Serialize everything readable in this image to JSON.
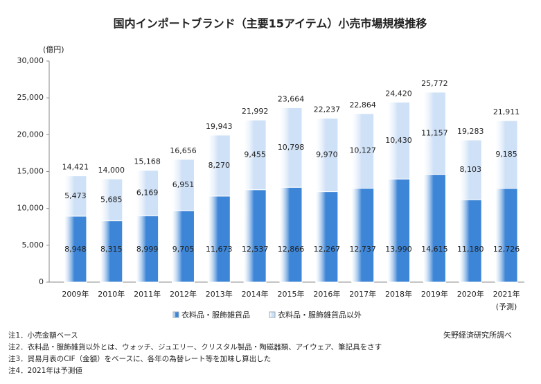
{
  "chart_data": {
    "type": "stacked_bar",
    "title": "国内インポートブランド（主要15アイテム）小売市場規模推移",
    "y_axis_label": "(億円)",
    "categories": [
      "2009年",
      "2010年",
      "2011年",
      "2012年",
      "2013年",
      "2014年",
      "2015年",
      "2016年",
      "2017年",
      "2018年",
      "2019年",
      "2020年",
      "2021年"
    ],
    "forecast_note": "(予測)",
    "series": [
      {
        "name": "衣料品・服飾雑貨品",
        "color": "#3d85d6",
        "values": [
          8948,
          8315,
          8999,
          9705,
          11673,
          12537,
          12866,
          12267,
          12737,
          13990,
          14615,
          11180,
          12726
        ],
        "value_labels": [
          "8,948",
          "8,315",
          "8,999",
          "9,705",
          "11,673",
          "12,537",
          "12,866",
          "12,267",
          "12,737",
          "13,990",
          "14,615",
          "11,180",
          "12,726"
        ]
      },
      {
        "name": "衣料品・服飾雑貨品以外",
        "color": "#cfe1f7",
        "values": [
          5473,
          5685,
          6169,
          6951,
          8270,
          9455,
          10798,
          9970,
          10127,
          10430,
          11157,
          8103,
          9185
        ],
        "value_labels": [
          "5,473",
          "5,685",
          "6,169",
          "6,951",
          "8,270",
          "9,455",
          "10,798",
          "9,970",
          "10,127",
          "10,430",
          "11,157",
          "8,103",
          "9,185"
        ]
      }
    ],
    "totals": {
      "values": [
        14421,
        14000,
        15168,
        16656,
        19943,
        21992,
        23664,
        22237,
        22864,
        24420,
        25772,
        19283,
        21911
      ],
      "value_labels": [
        "14,421",
        "14,000",
        "15,168",
        "16,656",
        "19,943",
        "21,992",
        "23,664",
        "22,237",
        "22,864",
        "24,420",
        "25,772",
        "19,283",
        "21,911"
      ]
    },
    "ylim": [
      0,
      30000
    ],
    "yticks": [
      0,
      {
        "value": 5000,
        "label": "5,000"
      },
      {
        "value": 10000,
        "label": "10,000"
      },
      {
        "value": 15000,
        "label": "15,000"
      },
      {
        "value": 20000,
        "label": "20,000"
      },
      {
        "value": 25000,
        "label": "25,000"
      },
      {
        "value": 30000,
        "label": "30,000"
      }
    ],
    "grid": false,
    "notes": [
      "注1．小売金額ベース",
      "注2．衣料品・服飾雑貨以外とは、ウォッチ、ジュエリー、クリスタル製品・陶磁器類、アイウェア、筆記具をさす",
      "注3．貿易月表のCIF（金額）をベースに、各年の為替レート等を加味し算出した",
      "注4．2021年は予測値"
    ],
    "source": "矢野経済研究所調べ"
  }
}
